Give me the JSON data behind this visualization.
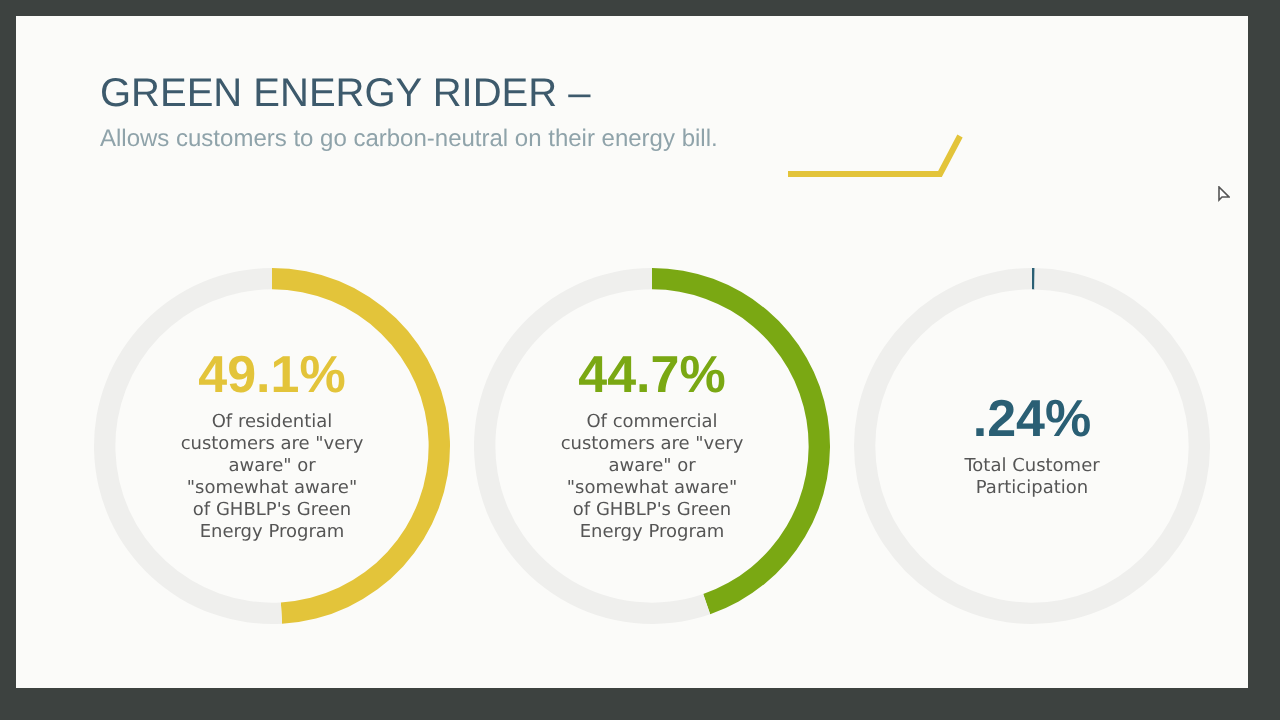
{
  "chart_data": [
    {
      "type": "donut",
      "title": "GREEN ENERGY RIDER –",
      "subtitle": "Allows customers to go carbon-neutral on their energy bill.",
      "categories": [
        null,
        null
      ],
      "values": [
        49.1,
        50.9
      ],
      "colors": [
        "#e3c43a",
        "#efefed"
      ],
      "value_labels": [
        "49.1%",
        null
      ],
      "annotations": [
        "Of residential customers are \"very aware\" or \"somewhat aware\" of GHBLP's Green Energy Program"
      ]
    },
    {
      "type": "donut",
      "categories": [
        null,
        null
      ],
      "values": [
        44.7,
        55.3
      ],
      "colors": [
        "#7aa813",
        "#efefed"
      ],
      "value_labels": [
        "44.7%",
        null
      ],
      "annotations": [
        "Of commercial customers are \"very aware\" or \"somewhat aware\" of GHBLP's Green Energy Program"
      ]
    },
    {
      "type": "donut",
      "categories": [
        null,
        null
      ],
      "values": [
        0.24,
        99.76
      ],
      "colors": [
        "#2a5f74",
        "#efefed"
      ],
      "value_labels": [
        ".24%",
        null
      ],
      "annotations": [
        "Total Customer Participation"
      ]
    }
  ]
}
